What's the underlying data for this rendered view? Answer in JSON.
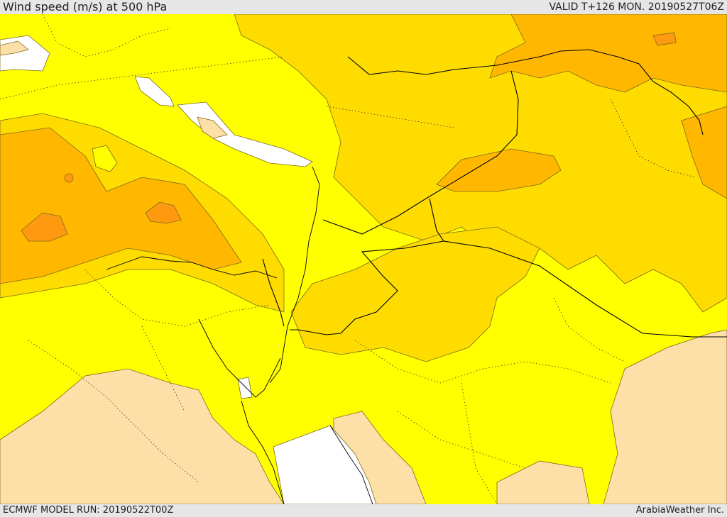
{
  "header": {
    "title": "Wind speed (m/s) at 500 hPa",
    "valid": "VALID T+126 MON. 20190527T06Z"
  },
  "footer": {
    "model_run": "ECMWF MODEL RUN: 20190522T00Z",
    "credit": "ArabiaWeather Inc."
  },
  "colors": {
    "no_data_white": "#ffffff",
    "level_1_peach": "#fde0a8",
    "level_2_yellow": "#ffff00",
    "level_3_gold": "#ffdc00",
    "level_4_amber": "#ffb700",
    "level_5_orange": "#ff9a10",
    "level_6_red_orange": "#ff7020",
    "border_line": "#000000",
    "contour_line": "#7a6a20"
  }
}
